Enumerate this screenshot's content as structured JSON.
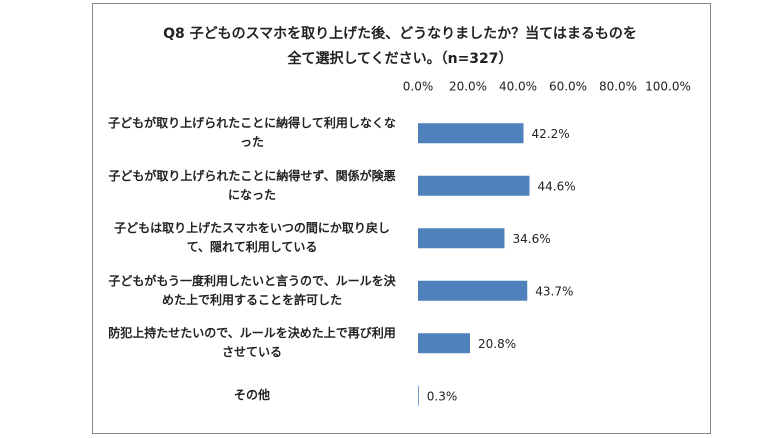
{
  "chart_data": {
    "type": "bar",
    "orientation": "horizontal",
    "title": "Q8 子どものスマホを取り上げた後、どうなりましたか？当てはまるものを全て選択してください。（n=327）",
    "categories": [
      "子どもが取り上げられたことに納得して利用しなくなった",
      "子どもが取り上げられたことに納得せず、関係が険悪になった",
      "子どもは取り上げたスマホをいつの間にか取り戻して、隠れて利用している",
      "子どもがもう一度利用したいと言うので、ルールを決めた上で利用することを許可した",
      "防犯上持たせたいので、ルールを決めた上で再び利用させている",
      "その他"
    ],
    "values": [
      42.2,
      44.6,
      34.6,
      43.7,
      20.8,
      0.3
    ],
    "value_labels": [
      "42.2%",
      "44.6%",
      "34.6%",
      "43.7%",
      "20.8%",
      "0.3%"
    ],
    "color": "#4f81bd",
    "xlim": [
      0,
      100
    ],
    "xticks": [
      {
        "value": 0,
        "label": "0.0%"
      },
      {
        "value": 20,
        "label": "20.0%"
      },
      {
        "value": 40,
        "label": "40.0%"
      },
      {
        "value": 60,
        "label": "60.0%"
      },
      {
        "value": 80,
        "label": "80.0%"
      },
      {
        "value": 100,
        "label": "100.0%"
      }
    ],
    "grid": false
  }
}
